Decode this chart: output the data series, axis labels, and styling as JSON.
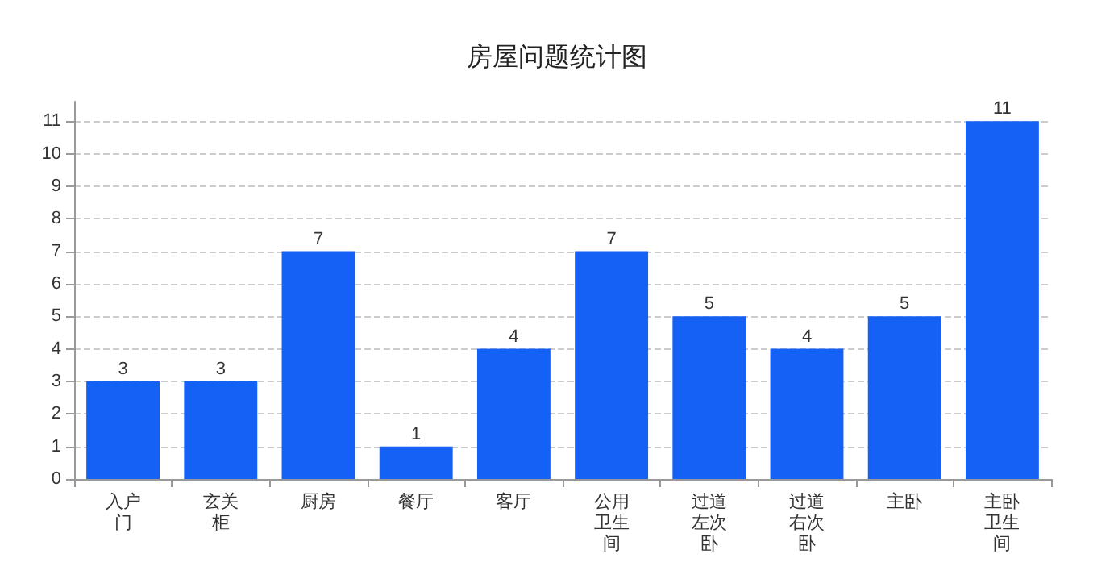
{
  "chart_data": {
    "type": "bar",
    "title": "房屋问题统计图",
    "categories": [
      "入户门",
      "玄关柜",
      "厨房",
      "餐厅",
      "客厅",
      "公用卫生间",
      "过道左次卧",
      "过道右次卧",
      "主卧",
      "主卧卫生间"
    ],
    "values": [
      3,
      3,
      7,
      1,
      4,
      7,
      5,
      4,
      5,
      11
    ],
    "color": "#1560f5",
    "ylim": [
      0,
      11.6
    ],
    "yticks": [
      0,
      1,
      2,
      3,
      4,
      5,
      6,
      7,
      8,
      9,
      10,
      11
    ],
    "grid": "y",
    "data_labels": true
  }
}
